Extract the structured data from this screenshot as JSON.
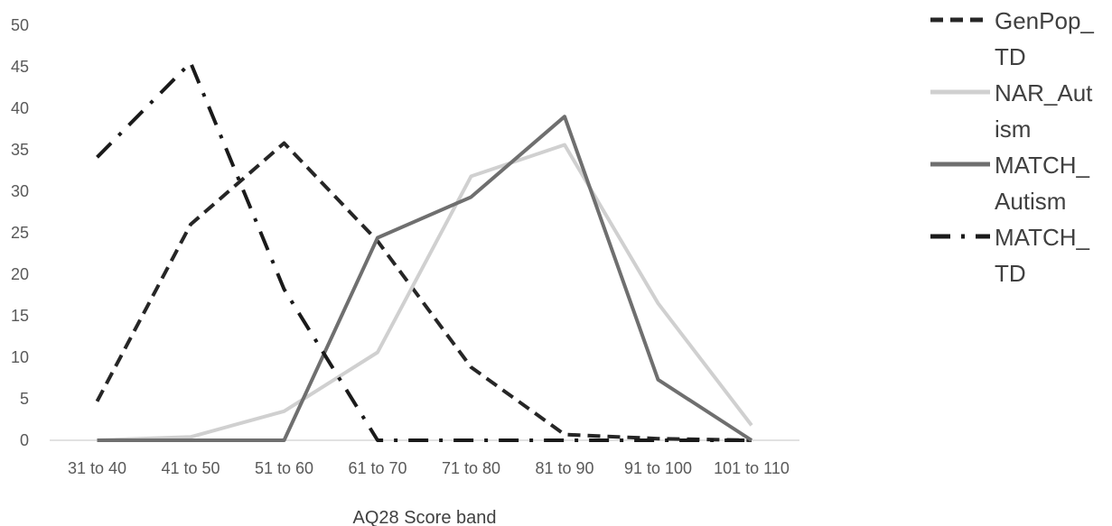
{
  "chart_data": {
    "type": "line",
    "title": "",
    "xlabel": "AQ28 Score band",
    "ylabel": "",
    "ylim": [
      0,
      50
    ],
    "yticks": [
      0,
      5,
      10,
      15,
      20,
      25,
      30,
      35,
      40,
      45,
      50
    ],
    "categories": [
      "31 to 40",
      "41 to 50",
      "51 to 60",
      "61 to 70",
      "71 to 80",
      "81 to 90",
      "91 to 100",
      "101 to 110"
    ],
    "grid": "baseline only",
    "legend_position": "right",
    "series": [
      {
        "name": "GenPop_TD",
        "legend_lines": [
          "GenPop_",
          "TD"
        ],
        "style": "dashed",
        "color": "#262626",
        "values": [
          4.7,
          26,
          35.8,
          24,
          8.8,
          0.7,
          0.2,
          0
        ]
      },
      {
        "name": "NAR_Autism",
        "legend_lines": [
          "NAR_Aut",
          "ism"
        ],
        "style": "solid",
        "color": "#d0d0d0",
        "values": [
          0,
          0.4,
          3.5,
          10.6,
          31.8,
          35.6,
          16.5,
          1.8
        ]
      },
      {
        "name": "MATCH_Autism",
        "legend_lines": [
          "MATCH_",
          "Autism"
        ],
        "style": "solid",
        "color": "#6f6f6f",
        "values": [
          0,
          0,
          0,
          24.4,
          29.3,
          39,
          7.3,
          0
        ]
      },
      {
        "name": "MATCH_TD",
        "legend_lines": [
          "MATCH_",
          "TD"
        ],
        "style": "dashdot",
        "color": "#1a1a1a",
        "values": [
          34.1,
          45.5,
          18.2,
          0,
          0,
          0,
          0,
          0
        ]
      }
    ]
  }
}
